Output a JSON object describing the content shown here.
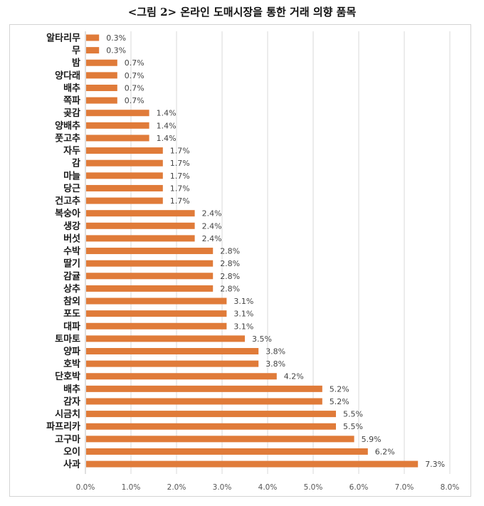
{
  "title": "<그림 2> 온라인 도매시장을 통한 거래 의향 품목",
  "chart_data": {
    "type": "bar",
    "orientation": "horizontal",
    "categories": [
      "알타리무",
      "무",
      "밤",
      "양다래",
      "배추",
      "쪽파",
      "곶감",
      "양배추",
      "풋고추",
      "자두",
      "감",
      "마늘",
      "당근",
      "건고추",
      "복숭아",
      "생강",
      "버섯",
      "수박",
      "딸기",
      "감귤",
      "상추",
      "참외",
      "포도",
      "대파",
      "토마토",
      "양파",
      "호박",
      "단호박",
      "배추",
      "감자",
      "시금치",
      "파프리카",
      "고구마",
      "오이",
      "사과"
    ],
    "values": [
      0.3,
      0.3,
      0.7,
      0.7,
      0.7,
      0.7,
      1.4,
      1.4,
      1.4,
      1.7,
      1.7,
      1.7,
      1.7,
      1.7,
      2.4,
      2.4,
      2.4,
      2.8,
      2.8,
      2.8,
      2.8,
      3.1,
      3.1,
      3.1,
      3.5,
      3.8,
      3.8,
      4.2,
      5.2,
      5.2,
      5.5,
      5.5,
      5.9,
      6.2,
      7.3
    ],
    "value_labels": [
      "0.3%",
      "0.3%",
      "0.7%",
      "0.7%",
      "0.7%",
      "0.7%",
      "1.4%",
      "1.4%",
      "1.4%",
      "1.7%",
      "1.7%",
      "1.7%",
      "1.7%",
      "1.7%",
      "2.4%",
      "2.4%",
      "2.4%",
      "2.8%",
      "2.8%",
      "2.8%",
      "2.8%",
      "3.1%",
      "3.1%",
      "3.1%",
      "3.5%",
      "3.8%",
      "3.8%",
      "4.2%",
      "5.2%",
      "5.2%",
      "5.5%",
      "5.5%",
      "5.9%",
      "6.2%",
      "7.3%"
    ],
    "x_ticks": [
      "0.0%",
      "1.0%",
      "2.0%",
      "3.0%",
      "4.0%",
      "5.0%",
      "6.0%",
      "7.0%",
      "8.0%"
    ],
    "xlim": [
      0,
      8
    ],
    "grid": "vertical",
    "legend": "none",
    "bar_color": "#e07b39",
    "grid_color": "#d9d9d9",
    "axis_color": "#bfbfbf"
  }
}
